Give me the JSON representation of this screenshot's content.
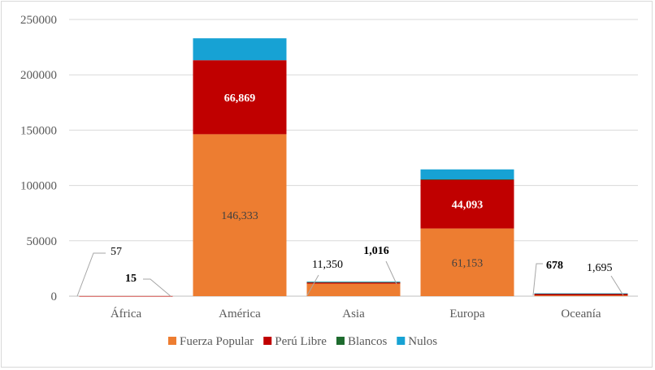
{
  "chart_data": {
    "type": "bar",
    "stacked": true,
    "categories": [
      "África",
      "América",
      "Asia",
      "Europa",
      "Oceanía"
    ],
    "series": [
      {
        "name": "Fuerza Popular",
        "color": "#ED7D31",
        "values": [
          57,
          146333,
          11350,
          61153,
          678
        ]
      },
      {
        "name": "Perú Libre",
        "color": "#C00000",
        "values": [
          15,
          66869,
          1016,
          44093,
          1695
        ]
      },
      {
        "name": "Blancos",
        "color": "#1E6B2E",
        "values": [
          0,
          0,
          400,
          300,
          50
        ]
      },
      {
        "name": "Nulos",
        "color": "#17A2D4",
        "values": [
          0,
          19800,
          400,
          9000,
          100
        ]
      }
    ],
    "data_labels": [
      {
        "category": "África",
        "series": "Fuerza Popular",
        "text": "57",
        "color": "#000000",
        "callout": true
      },
      {
        "category": "África",
        "series": "Perú Libre",
        "text": "15",
        "color": "#000000",
        "bold": true,
        "callout": true
      },
      {
        "category": "América",
        "series": "Fuerza Popular",
        "text": "146,333",
        "color": "#404040"
      },
      {
        "category": "América",
        "series": "Perú Libre",
        "text": "66,869",
        "color": "#ffffff",
        "bold": true
      },
      {
        "category": "Asia",
        "series": "Fuerza Popular",
        "text": "11,350",
        "color": "#000000",
        "callout": true
      },
      {
        "category": "Asia",
        "series": "Perú Libre",
        "text": "1,016",
        "color": "#000000",
        "bold": true,
        "callout": true
      },
      {
        "category": "Europa",
        "series": "Fuerza Popular",
        "text": "61,153",
        "color": "#404040"
      },
      {
        "category": "Europa",
        "series": "Perú Libre",
        "text": "44,093",
        "color": "#ffffff",
        "bold": true
      },
      {
        "category": "Oceanía",
        "series": "Fuerza Popular",
        "text": "678",
        "color": "#000000",
        "bold": true,
        "callout": true
      },
      {
        "category": "Oceanía",
        "series": "Perú Libre",
        "text": "1,695",
        "color": "#000000",
        "callout": true
      }
    ],
    "y_ticks": [
      "0",
      "50000",
      "100000",
      "150000",
      "200000",
      "250000"
    ],
    "ylim": [
      0,
      250000
    ],
    "grid": true,
    "legend_position": "bottom"
  }
}
